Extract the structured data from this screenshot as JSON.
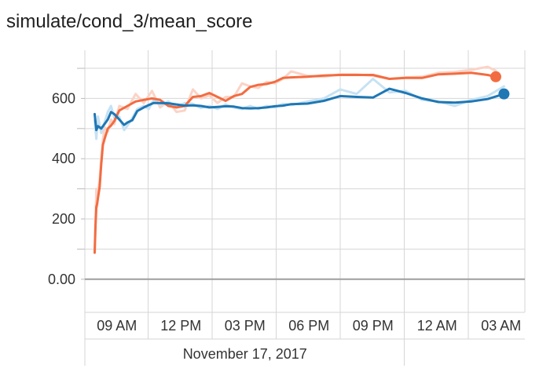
{
  "chart_data": {
    "type": "line",
    "title": "simulate/cond_3/mean_score",
    "xlabel": "",
    "ylabel": "",
    "x_ticks": [
      "09 AM",
      "12 PM",
      "03 PM",
      "06 PM",
      "09 PM",
      "12 AM",
      "03 AM"
    ],
    "x_secondary_label": "November 17, 2017",
    "y_ticks": [
      {
        "value": 0,
        "label": "0.00"
      },
      {
        "value": 200,
        "label": "200"
      },
      {
        "value": 400,
        "label": "400"
      },
      {
        "value": 600,
        "label": "600"
      }
    ],
    "ylim": [
      -110,
      760
    ],
    "grid": true,
    "series": [
      {
        "color": "#f26c41",
        "raw_color": "#fbd3c6",
        "x": [
          0.0,
          0.05,
          0.1,
          0.15,
          0.2,
          0.3,
          0.4,
          0.5,
          0.6,
          0.8,
          1.0,
          1.2,
          1.5,
          2.0,
          2.5,
          3.0,
          3.5,
          4.0,
          4.5,
          5.0,
          5.5,
          6.0,
          6.5,
          7.0,
          7.5,
          8.0,
          8.5,
          9.0,
          9.5,
          10.0,
          10.5,
          11.0,
          11.5,
          12.0,
          13.0,
          14.0,
          15.0,
          16.0,
          17.0,
          18.0,
          19.0,
          20.0,
          21.0,
          22.0,
          23.0,
          24.0,
          24.5
        ],
        "values": [
          88,
          175,
          240,
          250,
          270,
          305,
          380,
          445,
          465,
          500,
          510,
          525,
          560,
          575,
          590,
          595,
          600,
          595,
          575,
          570,
          575,
          605,
          608,
          618,
          605,
          592,
          608,
          615,
          638,
          645,
          648,
          655,
          668,
          670,
          672,
          676,
          678,
          678,
          678,
          665,
          668,
          668,
          680,
          682,
          685,
          678,
          672
        ],
        "raw_values": [
          95,
          180,
          300,
          240,
          290,
          330,
          400,
          460,
          505,
          490,
          530,
          515,
          575,
          565,
          615,
          585,
          625,
          570,
          590,
          555,
          560,
          630,
          600,
          610,
          585,
          605,
          605,
          650,
          640,
          635,
          655,
          650,
          665,
          690,
          675,
          672,
          680,
          680,
          675,
          665,
          670,
          672,
          685,
          688,
          695,
          705,
          692
        ]
      },
      {
        "color": "#1f77b4",
        "raw_color": "#c6e2f3",
        "x": [
          0.0,
          0.1,
          0.2,
          0.4,
          0.6,
          0.8,
          1.0,
          1.2,
          1.5,
          1.8,
          2.0,
          2.3,
          2.6,
          3.0,
          3.3,
          3.6,
          4.0,
          4.5,
          5.0,
          5.5,
          6.0,
          6.5,
          7.0,
          7.5,
          8.0,
          8.5,
          9.0,
          9.5,
          10.0,
          10.5,
          11.0,
          11.5,
          12.0,
          13.0,
          14.0,
          15.0,
          16.0,
          17.0,
          18.0,
          19.0,
          20.0,
          21.0,
          22.0,
          23.0,
          24.0,
          25.0
        ],
        "values": [
          548,
          495,
          508,
          500,
          515,
          530,
          555,
          548,
          530,
          512,
          520,
          528,
          558,
          570,
          578,
          585,
          585,
          584,
          580,
          576,
          577,
          575,
          570,
          572,
          574,
          573,
          568,
          567,
          568,
          570,
          574,
          576,
          581,
          583,
          592,
          608,
          605,
          603,
          632,
          618,
          600,
          588,
          586,
          590,
          598,
          615
        ],
        "raw_values": [
          528,
          466,
          540,
          485,
          520,
          555,
          575,
          535,
          540,
          495,
          510,
          535,
          565,
          575,
          565,
          595,
          580,
          590,
          570,
          585,
          582,
          568,
          575,
          565,
          580,
          570,
          565,
          575,
          565,
          575,
          570,
          582,
          578,
          590,
          600,
          630,
          615,
          665,
          620,
          625,
          595,
          590,
          575,
          595,
          608,
          640
        ]
      }
    ]
  }
}
